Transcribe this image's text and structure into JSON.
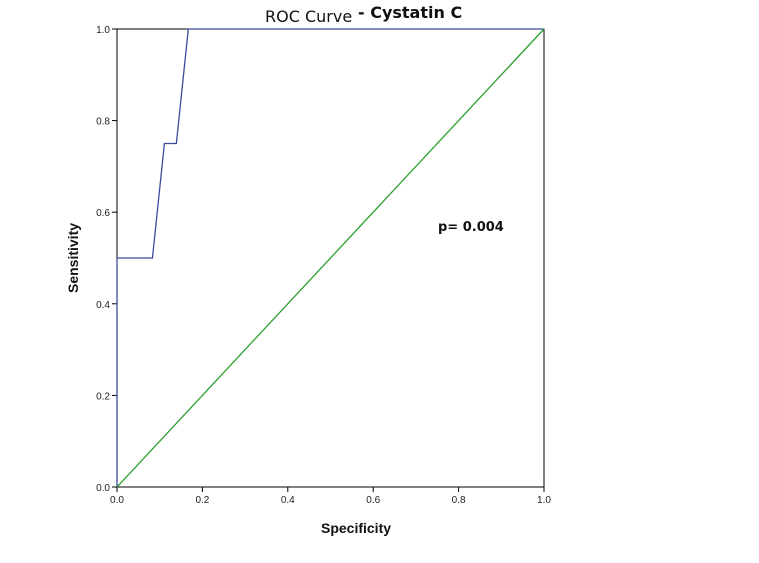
{
  "chart_data": {
    "type": "line",
    "title": "ROC Curve",
    "subtitle": "- Cystatin C",
    "xlabel": "Specificity",
    "ylabel": "Sensitivity",
    "xlim": [
      0,
      1
    ],
    "ylim": [
      0,
      1
    ],
    "grid": false,
    "xticks": [
      "0.0",
      "0.2",
      "0.4",
      "0.6",
      "0.8",
      "1.0"
    ],
    "yticks": [
      "0.0",
      "0.2",
      "0.4",
      "0.6",
      "0.8",
      "1.0"
    ],
    "annotation": "p= 0.004",
    "series": [
      {
        "color": "#3a4a9a",
        "x": [
          0,
          0,
          0.083,
          0.111,
          0.139,
          0.167,
          1
        ],
        "y": [
          0,
          0.5,
          0.5,
          0.75,
          0.75,
          1,
          1
        ]
      },
      {
        "color": "#2ca02c",
        "x": [
          0,
          1
        ],
        "y": [
          0,
          1
        ]
      }
    ]
  }
}
